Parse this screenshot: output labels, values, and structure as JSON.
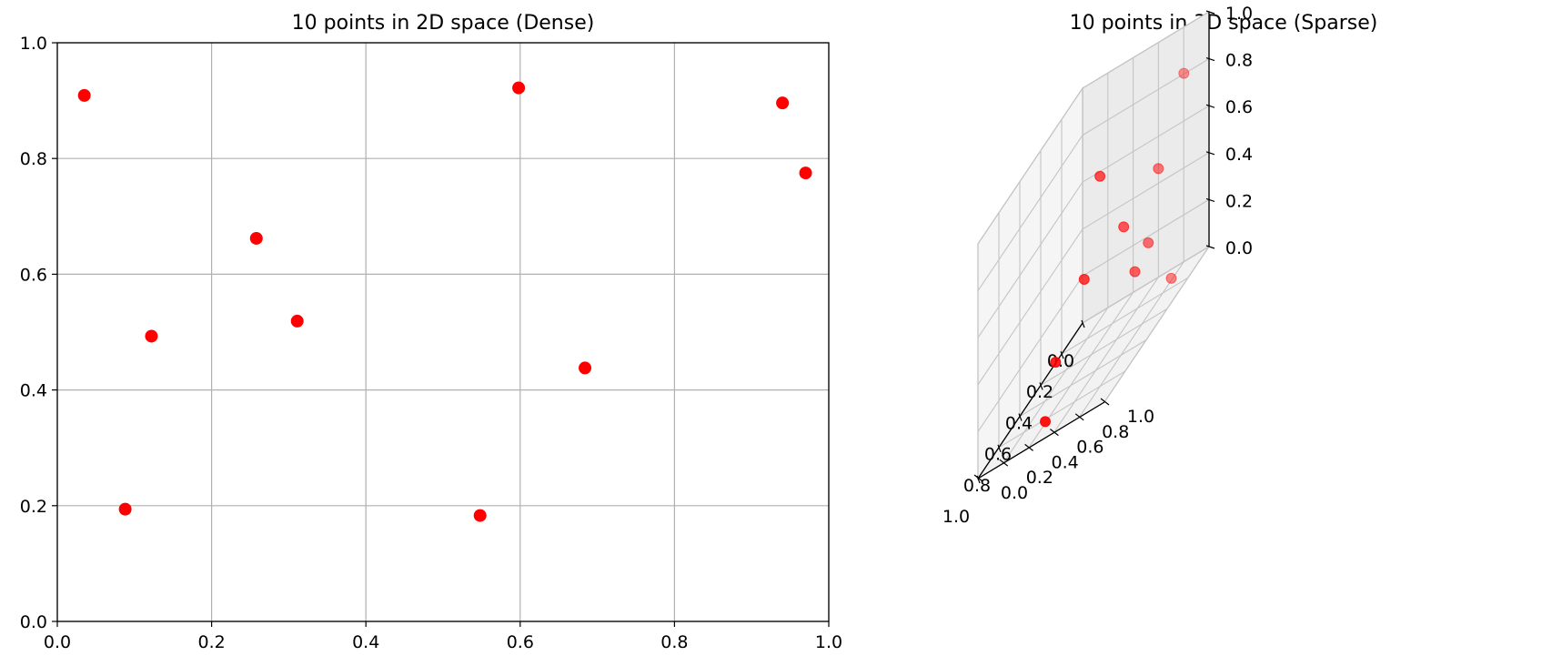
{
  "chart_data": [
    {
      "type": "scatter",
      "title": "10 points in 2D space (Dense)",
      "xlim": [
        0,
        1
      ],
      "ylim": [
        0,
        1
      ],
      "xticks": [
        "0.0",
        "0.2",
        "0.4",
        "0.6",
        "0.8",
        "1.0"
      ],
      "yticks": [
        "0.0",
        "0.2",
        "0.4",
        "0.6",
        "0.8",
        "1.0"
      ],
      "grid": true,
      "color": "#ff0000",
      "points": [
        {
          "x": 0.035,
          "y": 0.909
        },
        {
          "x": 0.598,
          "y": 0.922
        },
        {
          "x": 0.94,
          "y": 0.896
        },
        {
          "x": 0.97,
          "y": 0.775
        },
        {
          "x": 0.258,
          "y": 0.662
        },
        {
          "x": 0.122,
          "y": 0.493
        },
        {
          "x": 0.311,
          "y": 0.519
        },
        {
          "x": 0.684,
          "y": 0.438
        },
        {
          "x": 0.088,
          "y": 0.194
        },
        {
          "x": 0.548,
          "y": 0.183
        }
      ]
    },
    {
      "type": "scatter",
      "projection": "3d",
      "title": "10 points in 3D space (Sparse)",
      "xlim": [
        0,
        1
      ],
      "ylim": [
        0,
        1
      ],
      "zlim": [
        0,
        1
      ],
      "xticks": [
        "0.0",
        "0.2",
        "0.4",
        "0.6",
        "0.8",
        "1.0"
      ],
      "yticks": [
        "0.0",
        "0.2",
        "0.4",
        "0.6",
        "0.8",
        "1.0"
      ],
      "zticks": [
        "0.0",
        "0.2",
        "0.4",
        "0.6",
        "0.8",
        "1.0"
      ],
      "grid": true,
      "color": "#ff0000",
      "points": [
        {
          "x": 0.55,
          "y": 0.78,
          "z": 0.52
        },
        {
          "x": 0.3,
          "y": 0.95,
          "z": 0.08
        },
        {
          "x": 0.12,
          "y": 0.9,
          "z": 0.85
        },
        {
          "x": 0.4,
          "y": 0.93,
          "z": 0.62
        },
        {
          "x": 0.6,
          "y": 0.91,
          "z": 0.32
        },
        {
          "x": 0.1,
          "y": 0.22,
          "z": 0.62
        },
        {
          "x": 0.25,
          "y": 0.22,
          "z": 0.28
        },
        {
          "x": 0.73,
          "y": 0.39,
          "z": 0.19
        },
        {
          "x": 0.9,
          "y": 0.45,
          "z": 0.03
        },
        {
          "x": 0.4,
          "y": 0.85,
          "z": 0.33
        }
      ]
    }
  ]
}
